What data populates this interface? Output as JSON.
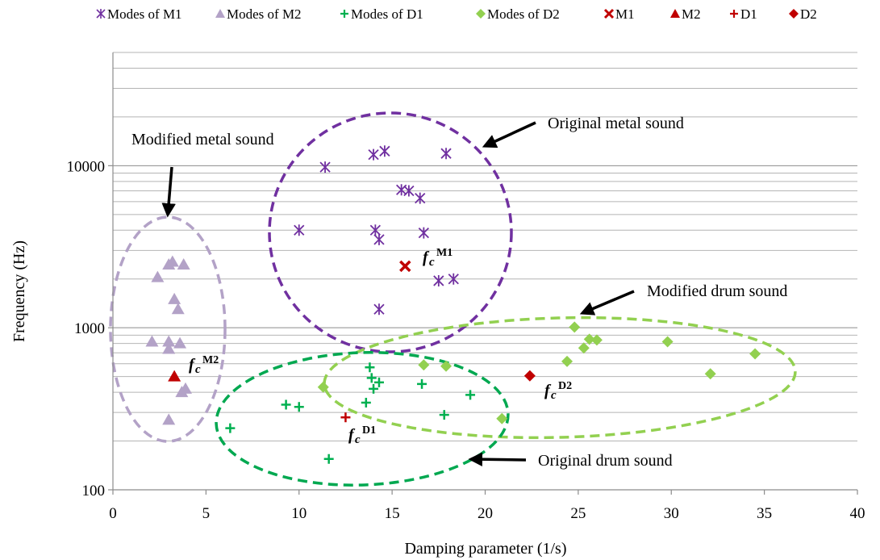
{
  "chart_data": {
    "type": "scatter",
    "xlabel": "Damping parameter (1/s)",
    "ylabel": "Frequency (Hz)",
    "xlim": [
      0,
      40
    ],
    "ylim": [
      100,
      50000
    ],
    "yscale": "log",
    "x_ticks": [
      "0",
      "5",
      "10",
      "15",
      "20",
      "25",
      "30",
      "35",
      "40"
    ],
    "y_ticks": [
      "100",
      "1000",
      "10000"
    ],
    "grid": "horizontal minor and major log gridlines",
    "legend": "top",
    "colors": {
      "m1": "#7030a0",
      "m2": "#b3a2c7",
      "d1": "#00b050",
      "d2": "#92d050",
      "center": "#c00000"
    },
    "series": [
      {
        "name": "Modes of M1",
        "marker": "asterisk",
        "color": "#7030a0",
        "points": [
          [
            11.4,
            9800
          ],
          [
            14.0,
            11700
          ],
          [
            14.6,
            12300
          ],
          [
            17.9,
            11900
          ],
          [
            15.5,
            7100
          ],
          [
            15.9,
            7000
          ],
          [
            16.5,
            6300
          ],
          [
            10.0,
            4000
          ],
          [
            14.1,
            4000
          ],
          [
            14.3,
            3500
          ],
          [
            16.7,
            3850
          ],
          [
            17.5,
            1950
          ],
          [
            18.3,
            2000
          ],
          [
            14.3,
            1300
          ]
        ]
      },
      {
        "name": "Modes of M2",
        "marker": "triangle",
        "color": "#b3a2c7",
        "points": [
          [
            3.0,
            2450
          ],
          [
            3.2,
            2550
          ],
          [
            3.8,
            2450
          ],
          [
            2.4,
            2050
          ],
          [
            3.3,
            1500
          ],
          [
            3.5,
            1300
          ],
          [
            2.1,
            820
          ],
          [
            3.0,
            820
          ],
          [
            3.6,
            800
          ],
          [
            3.0,
            740
          ],
          [
            3.9,
            420
          ],
          [
            3.7,
            400
          ],
          [
            3.0,
            270
          ]
        ]
      },
      {
        "name": "Modes of D1",
        "marker": "plus",
        "color": "#00b050",
        "points": [
          [
            13.8,
            570
          ],
          [
            13.9,
            490
          ],
          [
            14.3,
            460
          ],
          [
            14.0,
            420
          ],
          [
            16.6,
            450
          ],
          [
            19.2,
            385
          ],
          [
            13.6,
            345
          ],
          [
            9.3,
            335
          ],
          [
            10.0,
            325
          ],
          [
            17.8,
            290
          ],
          [
            6.3,
            240
          ],
          [
            11.6,
            155
          ]
        ]
      },
      {
        "name": "Modes of D2",
        "marker": "diamond",
        "color": "#92d050",
        "points": [
          [
            24.8,
            1010
          ],
          [
            25.6,
            850
          ],
          [
            26.0,
            840
          ],
          [
            25.3,
            750
          ],
          [
            29.8,
            820
          ],
          [
            34.5,
            690
          ],
          [
            24.4,
            620
          ],
          [
            16.7,
            590
          ],
          [
            17.9,
            580
          ],
          [
            32.1,
            520
          ],
          [
            11.3,
            430
          ],
          [
            20.9,
            275
          ]
        ]
      },
      {
        "name": "M1",
        "marker": "x",
        "color": "#c00000",
        "points": [
          [
            15.7,
            2400
          ]
        ]
      },
      {
        "name": "M2",
        "marker": "triangle",
        "color": "#c00000",
        "points": [
          [
            3.3,
            500
          ]
        ]
      },
      {
        "name": "D1",
        "marker": "plus",
        "color": "#c00000",
        "points": [
          [
            12.5,
            280
          ]
        ]
      },
      {
        "name": "D2",
        "marker": "diamond",
        "color": "#c00000",
        "points": [
          [
            22.4,
            505
          ]
        ]
      }
    ],
    "annotations": [
      {
        "text": "Original metal sound"
      },
      {
        "text": "Modified metal sound"
      },
      {
        "text": "Modified drum sound"
      },
      {
        "text": "Original drum sound"
      }
    ],
    "center_labels": [
      {
        "base": "f",
        "sub": "c",
        "sup": "M1"
      },
      {
        "base": "f",
        "sub": "c",
        "sup": "M2"
      },
      {
        "base": "f",
        "sub": "c",
        "sup": "D1"
      },
      {
        "base": "f",
        "sub": "c",
        "sup": "D2"
      }
    ]
  }
}
